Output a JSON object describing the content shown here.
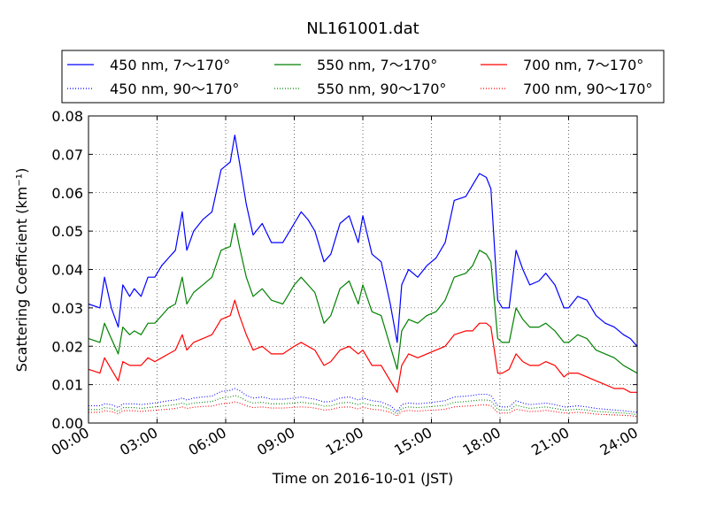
{
  "chart_data": {
    "type": "line",
    "title": "NL161001.dat",
    "xlabel": "Time on 2016-10-01 (JST)",
    "ylabel": "Scattering Coefficient (km⁻¹)",
    "xlim": [
      0,
      24
    ],
    "ylim": [
      0.0,
      0.08
    ],
    "xticks": [
      0,
      3,
      6,
      9,
      12,
      15,
      18,
      21,
      24
    ],
    "xtick_labels": [
      "00:00",
      "03:00",
      "06:00",
      "09:00",
      "12:00",
      "15:00",
      "18:00",
      "21:00",
      "24:00"
    ],
    "yticks": [
      0.0,
      0.01,
      0.02,
      0.03,
      0.04,
      0.05,
      0.06,
      0.07,
      0.08
    ],
    "ytick_labels": [
      "0.00",
      "0.01",
      "0.02",
      "0.03",
      "0.04",
      "0.05",
      "0.06",
      "0.07",
      "0.08"
    ],
    "grid": true,
    "legend_position": "top",
    "x": [
      0,
      0.5,
      0.7,
      1.0,
      1.3,
      1.5,
      1.8,
      2.0,
      2.3,
      2.6,
      2.9,
      3.2,
      3.5,
      3.8,
      4.1,
      4.3,
      4.6,
      5.0,
      5.4,
      5.8,
      6.2,
      6.4,
      6.6,
      6.9,
      7.2,
      7.6,
      8.0,
      8.5,
      9.0,
      9.3,
      9.6,
      9.9,
      10.3,
      10.6,
      11.0,
      11.4,
      11.8,
      12.0,
      12.4,
      12.8,
      13.2,
      13.5,
      13.7,
      14.0,
      14.4,
      14.8,
      15.2,
      15.6,
      16.0,
      16.5,
      16.8,
      17.1,
      17.4,
      17.6,
      17.9,
      18.1,
      18.4,
      18.7,
      19.0,
      19.3,
      19.7,
      20.0,
      20.4,
      20.8,
      21.0,
      21.4,
      21.8,
      22.2,
      22.6,
      23.0,
      23.4,
      23.7,
      24.0
    ],
    "series": [
      {
        "name": "450 nm, 7～170°",
        "color": "#0000ff",
        "style": "solid",
        "values": [
          0.031,
          0.03,
          0.038,
          0.03,
          0.025,
          0.036,
          0.033,
          0.035,
          0.033,
          0.038,
          0.038,
          0.041,
          0.043,
          0.045,
          0.055,
          0.045,
          0.05,
          0.053,
          0.055,
          0.066,
          0.068,
          0.075,
          0.068,
          0.057,
          0.049,
          0.052,
          0.047,
          0.047,
          0.052,
          0.055,
          0.053,
          0.05,
          0.042,
          0.044,
          0.052,
          0.054,
          0.047,
          0.054,
          0.044,
          0.042,
          0.031,
          0.021,
          0.036,
          0.04,
          0.038,
          0.041,
          0.043,
          0.047,
          0.058,
          0.059,
          0.062,
          0.065,
          0.064,
          0.061,
          0.032,
          0.03,
          0.03,
          0.045,
          0.04,
          0.036,
          0.037,
          0.039,
          0.036,
          0.03,
          0.03,
          0.033,
          0.032,
          0.028,
          0.026,
          0.025,
          0.023,
          0.022,
          0.02
        ]
      },
      {
        "name": "450 nm, 90～170°",
        "color": "#0000ff",
        "style": "dotted",
        "values": [
          0.0045,
          0.0045,
          0.005,
          0.0048,
          0.004,
          0.005,
          0.005,
          0.005,
          0.0048,
          0.005,
          0.0052,
          0.0055,
          0.0058,
          0.006,
          0.0065,
          0.006,
          0.0065,
          0.0068,
          0.007,
          0.0082,
          0.0085,
          0.009,
          0.0085,
          0.0072,
          0.0065,
          0.0068,
          0.0062,
          0.0062,
          0.0065,
          0.0068,
          0.0065,
          0.0062,
          0.0055,
          0.0056,
          0.0065,
          0.0068,
          0.006,
          0.0065,
          0.0058,
          0.0055,
          0.0045,
          0.003,
          0.0048,
          0.0052,
          0.005,
          0.0052,
          0.0055,
          0.0058,
          0.0068,
          0.007,
          0.0072,
          0.0075,
          0.0075,
          0.0072,
          0.0045,
          0.0042,
          0.0042,
          0.0058,
          0.0052,
          0.0048,
          0.005,
          0.0052,
          0.0048,
          0.0042,
          0.0042,
          0.0045,
          0.0042,
          0.0038,
          0.0036,
          0.0034,
          0.0032,
          0.003,
          0.0028
        ]
      },
      {
        "name": "550 nm, 7～170°",
        "color": "#008000",
        "style": "solid",
        "values": [
          0.022,
          0.021,
          0.026,
          0.022,
          0.018,
          0.025,
          0.023,
          0.024,
          0.023,
          0.026,
          0.026,
          0.028,
          0.03,
          0.031,
          0.038,
          0.031,
          0.034,
          0.036,
          0.038,
          0.045,
          0.046,
          0.052,
          0.046,
          0.038,
          0.033,
          0.035,
          0.032,
          0.031,
          0.036,
          0.038,
          0.036,
          0.034,
          0.026,
          0.028,
          0.035,
          0.037,
          0.031,
          0.036,
          0.029,
          0.028,
          0.02,
          0.014,
          0.024,
          0.027,
          0.026,
          0.028,
          0.029,
          0.032,
          0.038,
          0.039,
          0.041,
          0.045,
          0.044,
          0.042,
          0.022,
          0.021,
          0.021,
          0.03,
          0.027,
          0.025,
          0.025,
          0.026,
          0.024,
          0.021,
          0.021,
          0.023,
          0.022,
          0.019,
          0.018,
          0.017,
          0.015,
          0.014,
          0.013
        ]
      },
      {
        "name": "550 nm, 90～170°",
        "color": "#008000",
        "style": "dotted",
        "values": [
          0.0035,
          0.0035,
          0.004,
          0.0038,
          0.003,
          0.004,
          0.004,
          0.004,
          0.0038,
          0.004,
          0.0042,
          0.0044,
          0.0046,
          0.0048,
          0.0052,
          0.0048,
          0.0052,
          0.0054,
          0.0056,
          0.0065,
          0.0068,
          0.0072,
          0.0068,
          0.0058,
          0.0052,
          0.0054,
          0.005,
          0.005,
          0.0052,
          0.0054,
          0.0052,
          0.005,
          0.0044,
          0.0045,
          0.0052,
          0.0054,
          0.0048,
          0.0052,
          0.0046,
          0.0044,
          0.0036,
          0.0024,
          0.0038,
          0.0042,
          0.004,
          0.0042,
          0.0044,
          0.0046,
          0.0054,
          0.0056,
          0.0058,
          0.006,
          0.006,
          0.0058,
          0.0036,
          0.0034,
          0.0034,
          0.0046,
          0.0042,
          0.0038,
          0.004,
          0.0042,
          0.0038,
          0.0034,
          0.0034,
          0.0036,
          0.0034,
          0.003,
          0.0029,
          0.0027,
          0.0026,
          0.0024,
          0.0022
        ]
      },
      {
        "name": "700 nm, 7～170°",
        "color": "#ff0000",
        "style": "solid",
        "values": [
          0.014,
          0.013,
          0.017,
          0.014,
          0.011,
          0.016,
          0.015,
          0.015,
          0.015,
          0.017,
          0.016,
          0.017,
          0.018,
          0.019,
          0.023,
          0.019,
          0.021,
          0.022,
          0.023,
          0.027,
          0.028,
          0.032,
          0.028,
          0.023,
          0.019,
          0.02,
          0.018,
          0.018,
          0.02,
          0.021,
          0.02,
          0.019,
          0.015,
          0.016,
          0.019,
          0.02,
          0.018,
          0.019,
          0.015,
          0.015,
          0.011,
          0.008,
          0.015,
          0.018,
          0.017,
          0.018,
          0.019,
          0.02,
          0.023,
          0.024,
          0.024,
          0.026,
          0.026,
          0.025,
          0.013,
          0.013,
          0.014,
          0.018,
          0.016,
          0.015,
          0.015,
          0.016,
          0.015,
          0.012,
          0.013,
          0.013,
          0.012,
          0.011,
          0.01,
          0.009,
          0.009,
          0.008,
          0.008
        ]
      },
      {
        "name": "700 nm, 90～170°",
        "color": "#ff0000",
        "style": "dotted",
        "values": [
          0.0028,
          0.0028,
          0.0032,
          0.003,
          0.0024,
          0.0032,
          0.0032,
          0.0032,
          0.003,
          0.0032,
          0.0033,
          0.0035,
          0.0036,
          0.0038,
          0.0042,
          0.0038,
          0.0041,
          0.0043,
          0.0044,
          0.005,
          0.0052,
          0.0055,
          0.0052,
          0.0045,
          0.004,
          0.0042,
          0.0039,
          0.0039,
          0.0041,
          0.0042,
          0.0041,
          0.0039,
          0.0034,
          0.0035,
          0.0041,
          0.0042,
          0.0037,
          0.0041,
          0.0036,
          0.0034,
          0.0028,
          0.0018,
          0.003,
          0.0033,
          0.0031,
          0.0033,
          0.0034,
          0.0036,
          0.0042,
          0.0044,
          0.0045,
          0.0047,
          0.0047,
          0.0045,
          0.0028,
          0.0026,
          0.0026,
          0.0036,
          0.0033,
          0.003,
          0.0031,
          0.0033,
          0.003,
          0.0026,
          0.0026,
          0.0028,
          0.0026,
          0.0023,
          0.0022,
          0.0021,
          0.002,
          0.0019,
          0.0017
        ]
      }
    ]
  }
}
